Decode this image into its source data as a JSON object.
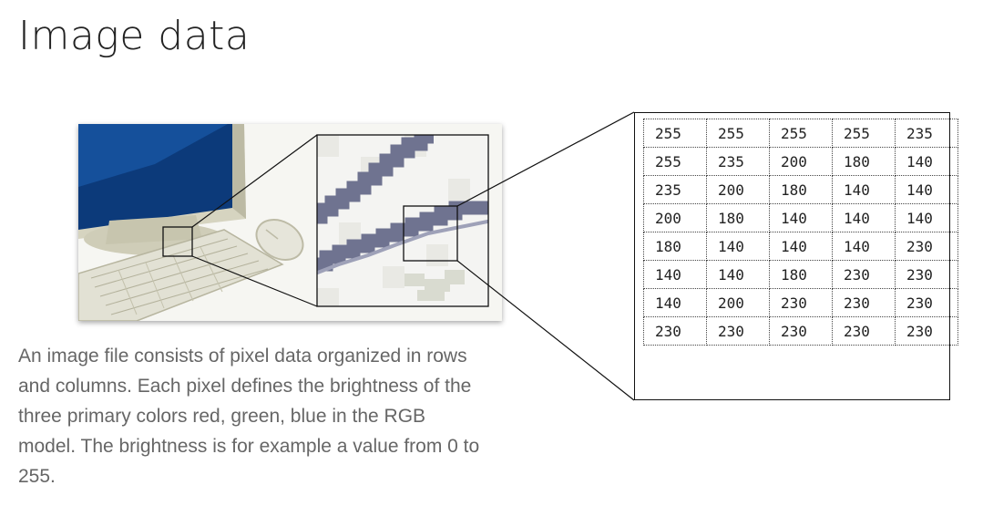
{
  "page": {
    "title": "Image data",
    "description": "An image file consists of pixel data organized in rows and columns. Each pixel defines the brightness of the three primary colors red, green, blue in the RGB model. The brightness is for example a value from 0 to 255."
  },
  "pixel_grid": {
    "rows": [
      [
        "255",
        "255",
        "255",
        "255",
        "235"
      ],
      [
        "255",
        "235",
        "200",
        "180",
        "140"
      ],
      [
        "235",
        "200",
        "180",
        "140",
        "140"
      ],
      [
        "200",
        "180",
        "140",
        "140",
        "140"
      ],
      [
        "180",
        "140",
        "140",
        "140",
        "230"
      ],
      [
        "140",
        "140",
        "180",
        "230",
        "230"
      ],
      [
        "140",
        "200",
        "230",
        "230",
        "230"
      ],
      [
        "230",
        "230",
        "230",
        "230",
        "230"
      ]
    ]
  },
  "illustration": {
    "subject": [
      "monitor-icon",
      "keyboard-icon",
      "mouse-icon"
    ],
    "colors": {
      "screen": "#0c3a7a",
      "bezel": "#d9d7c6",
      "pixel_stroke": "#6f7390",
      "outline": "#111111"
    }
  }
}
